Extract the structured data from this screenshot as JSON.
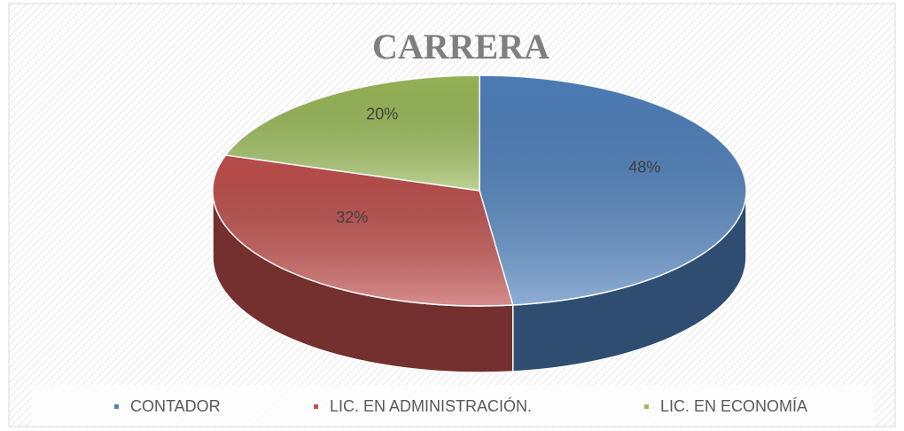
{
  "chart_data": {
    "type": "pie",
    "title": "CARRERA",
    "categories": [
      "CONTADOR",
      "LIC. EN ADMINISTRACIÓN.",
      "LIC. EN ECONOMÍA"
    ],
    "values": [
      48,
      32,
      20
    ],
    "value_labels": [
      "48%",
      "32%",
      "20%"
    ],
    "colors": [
      "#4f81bd",
      "#c0504d",
      "#9bbb59"
    ],
    "legend": "bottom"
  }
}
